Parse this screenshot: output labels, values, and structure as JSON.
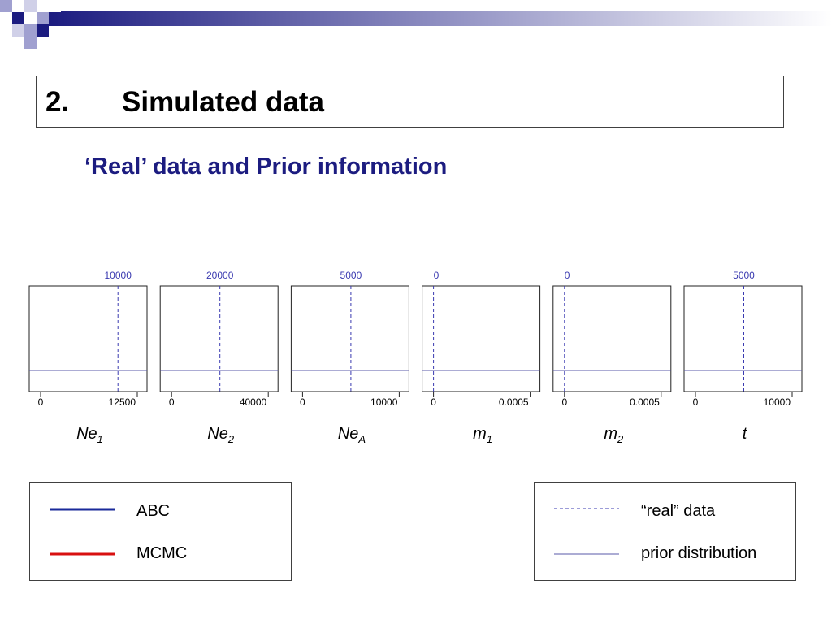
{
  "header": {
    "number": "2.",
    "title": "Simulated data"
  },
  "subtitle": "‘Real’ data and Prior information",
  "colors": {
    "real_data": "#3a3ab0",
    "prior": "#5a5aa8",
    "abc": "#1a2a9a",
    "mcmc": "#d81010",
    "subtitle": "#1c1c80",
    "deco_dark": "#1c1c80",
    "deco_light": "#a0a0d0"
  },
  "chart_data": [
    {
      "type": "line",
      "param": "Ne",
      "sub": "1",
      "xlim": [
        0,
        12500
      ],
      "tick_labels": [
        "0",
        "12500"
      ],
      "real_value": 10000,
      "real_label": "10000",
      "prior": "uniform"
    },
    {
      "type": "line",
      "param": "Ne",
      "sub": "2",
      "xlim": [
        0,
        40000
      ],
      "tick_labels": [
        "0",
        "40000"
      ],
      "real_value": 20000,
      "real_label": "20000",
      "prior": "uniform"
    },
    {
      "type": "line",
      "param": "Ne",
      "sub": "A",
      "xlim": [
        0,
        10000
      ],
      "tick_labels": [
        "0",
        "10000"
      ],
      "real_value": 5000,
      "real_label": "5000",
      "prior": "uniform"
    },
    {
      "type": "line",
      "param": "m",
      "sub": "1",
      "xlim": [
        0,
        0.0005
      ],
      "tick_labels": [
        "0",
        "0.0005"
      ],
      "real_value": 0,
      "real_label": "0",
      "prior": "uniform"
    },
    {
      "type": "line",
      "param": "m",
      "sub": "2",
      "xlim": [
        0,
        0.0005
      ],
      "tick_labels": [
        "0",
        "0.0005"
      ],
      "real_value": 0,
      "real_label": "0",
      "prior": "uniform"
    },
    {
      "type": "line",
      "param": "t",
      "sub": "",
      "xlim": [
        0,
        10000
      ],
      "tick_labels": [
        "0",
        "10000"
      ],
      "real_value": 5000,
      "real_label": "5000",
      "prior": "uniform"
    }
  ],
  "legend_left": {
    "items": [
      {
        "label": "ABC",
        "style": "solid",
        "color": "#1a2a9a"
      },
      {
        "label": "MCMC",
        "style": "solid",
        "color": "#d81010"
      }
    ]
  },
  "legend_right": {
    "items": [
      {
        "label": "“real” data",
        "style": "dashed",
        "color": "#3a3ab0"
      },
      {
        "label": "prior distribution",
        "style": "solid",
        "color": "#5a5aa8"
      }
    ]
  }
}
